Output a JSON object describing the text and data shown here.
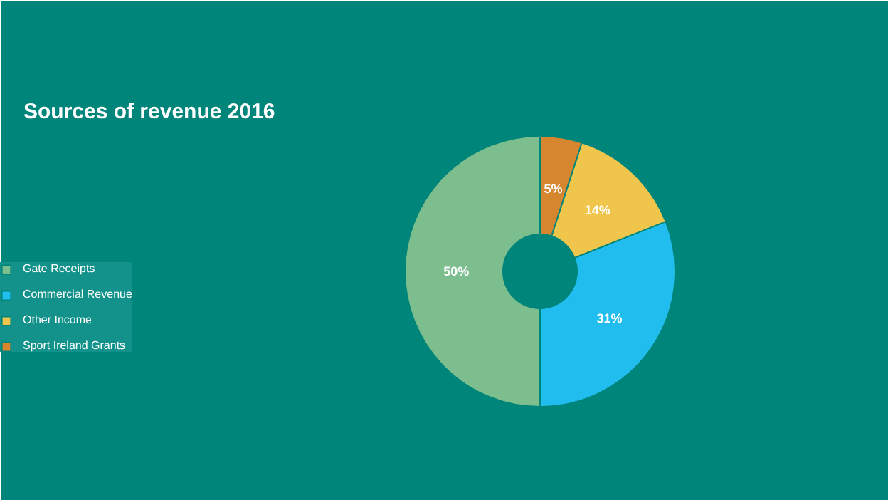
{
  "chart_data": {
    "type": "donut",
    "title": "Sources of revenue 2016",
    "categories": [
      "Gate Receipts",
      "Commercial Revenue",
      "Other Income",
      "Sport Ireland Grants"
    ],
    "values": [
      50,
      31,
      14,
      5
    ],
    "colors": [
      "#7cbe8e",
      "#22bdef",
      "#efc64b",
      "#d5862f"
    ],
    "value_labels": [
      "50%",
      "31%",
      "14%",
      "5%"
    ],
    "legend": "left"
  }
}
